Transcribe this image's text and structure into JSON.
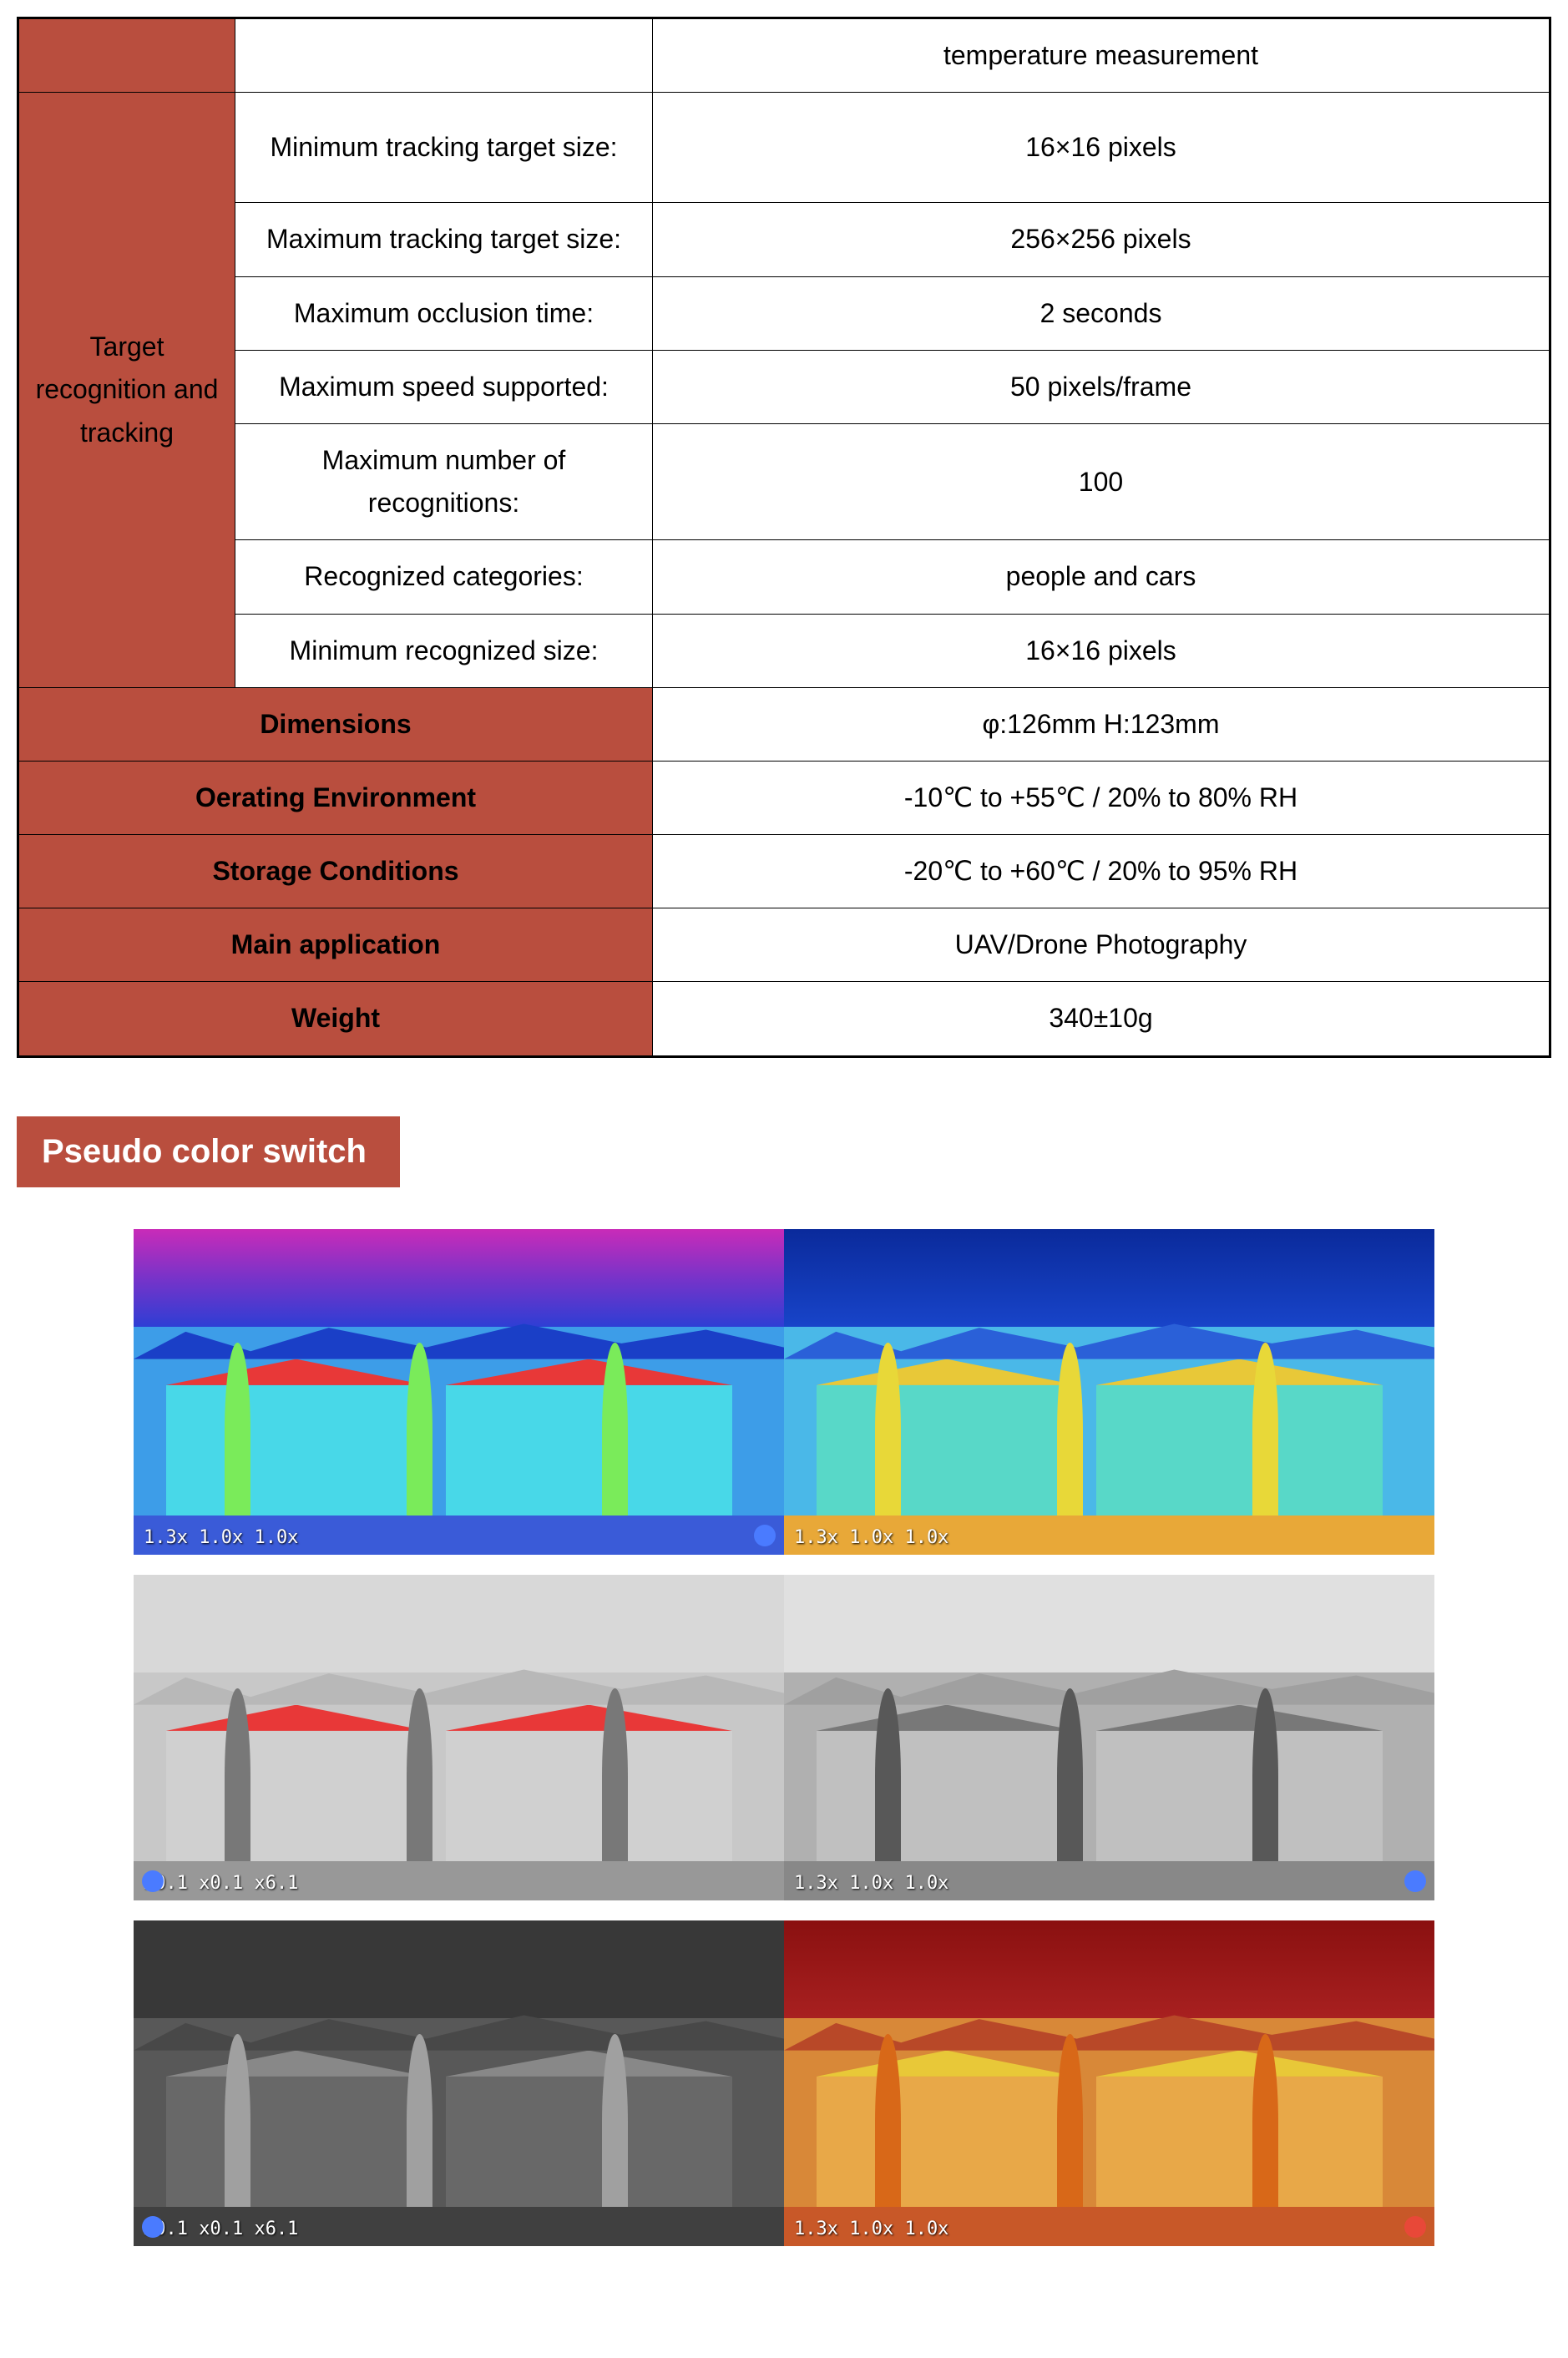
{
  "colors": {
    "header_bg": "#b94e3e",
    "border": "#000000",
    "text": "#000000",
    "white": "#ffffff"
  },
  "table": {
    "row0_value": "temperature measurement",
    "category_tracking": "Target recognition and tracking",
    "tracking_rows": [
      {
        "param": "Minimum tracking target size:",
        "value": "16×16 pixels"
      },
      {
        "param": "Maximum tracking target size:",
        "value": "256×256 pixels"
      },
      {
        "param": "Maximum occlusion time:",
        "value": "2 seconds"
      },
      {
        "param": "Maximum speed supported:",
        "value": "50 pixels/frame"
      },
      {
        "param": "Maximum number of recognitions:",
        "value": "100"
      },
      {
        "param": "Recognized categories:",
        "value": "people and cars"
      },
      {
        "param": "Minimum recognized size:",
        "value": "16×16 pixels"
      }
    ],
    "full_rows": [
      {
        "label": "Dimensions",
        "value": "φ:126mm    H:123mm"
      },
      {
        "label": "Oerating Environment",
        "value": "-10℃ to +55℃ / 20% to 80% RH"
      },
      {
        "label": "Storage Conditions",
        "value": "-20℃ to +60℃ / 20% to 95% RH"
      },
      {
        "label": "Main application",
        "value": "UAV/Drone Photography"
      },
      {
        "label": "Weight",
        "value": "340±10g"
      }
    ]
  },
  "section_title": "Pseudo color switch",
  "thermal_images": {
    "overlay_texts": {
      "zoom1": "1.3x 1.0x 1.0x",
      "zoom2": "x0.1 x0.1 x6.1"
    },
    "palettes": [
      {
        "left": {
          "sky": "linear-gradient(#c92bb8,#7833c9,#2e3ed4)",
          "mountains": "#1a3fc7",
          "buildings": "#3d9de8",
          "roof": "#e83838",
          "house": "#48d8e8",
          "ground": "#3a5bd8",
          "tree": "#7aeb5a",
          "corner": "#4a7bff"
        },
        "right": {
          "sky": "linear-gradient(#0a2a9b,#1844c9)",
          "mountains": "#2a60d8",
          "buildings": "#4ab8e8",
          "roof": "#e8c838",
          "house": "#58d8c8",
          "ground": "#e8a838",
          "tree": "#e8d838",
          "corner": "#e8a838"
        }
      },
      {
        "left": {
          "sky": "#d8d8d8",
          "mountains": "#b8b8b8",
          "buildings": "#c8c8c8",
          "roof": "#e83838",
          "house": "#d0d0d0",
          "ground": "#989898",
          "tree": "#787878",
          "corner": "#4a7bff"
        },
        "right": {
          "sky": "#e0e0e0",
          "mountains": "#a0a0a0",
          "buildings": "#b0b0b0",
          "roof": "#787878",
          "house": "#c0c0c0",
          "ground": "#888888",
          "tree": "#585858",
          "corner": "#4a7bff"
        }
      },
      {
        "left": {
          "sky": "#383838",
          "mountains": "#484848",
          "buildings": "#585858",
          "roof": "#888888",
          "house": "#686868",
          "ground": "#404040",
          "tree": "#a0a0a0",
          "corner": "#4a7bff"
        },
        "right": {
          "sky": "linear-gradient(#8a1010,#a82020)",
          "mountains": "#b84828",
          "buildings": "#d88838",
          "roof": "#e8c838",
          "house": "#e8a848",
          "ground": "#c85828",
          "tree": "#d86818",
          "corner": "#e84838"
        }
      }
    ]
  }
}
